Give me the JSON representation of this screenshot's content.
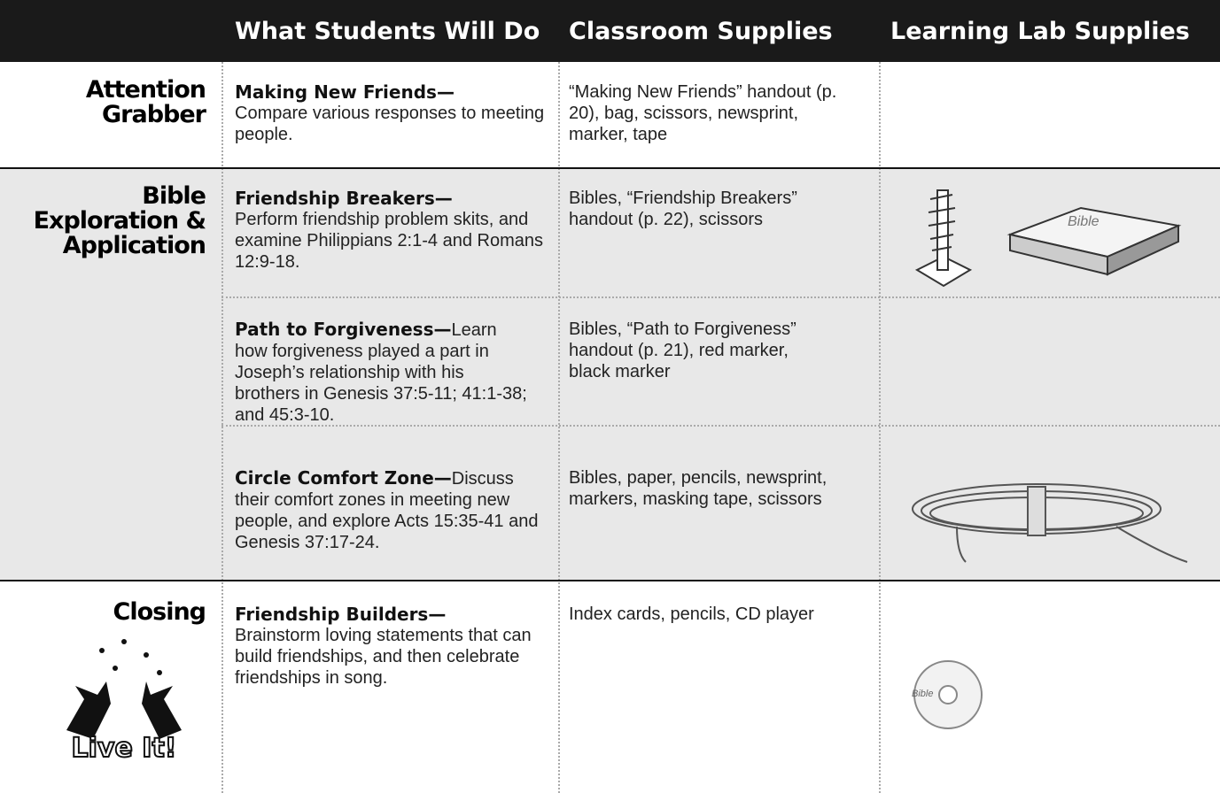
{
  "header": {
    "columns": [
      "What Students Will Do",
      "Classroom Supplies",
      "Learning Lab Supplies"
    ]
  },
  "sections": [
    {
      "label": "Attention Grabber",
      "activities": [
        {
          "title": "Making New Friends—",
          "description": "Compare various responses to meeting people.",
          "supplies": "“Making New Friends” handout (p. 20), bag, scissors, newsprint, marker, tape"
        }
      ]
    },
    {
      "label": "Bible Exploration & Application",
      "activities": [
        {
          "title": "Friendship Breakers—",
          "description": "Perform friendship problem skits, and examine Philippians 2:1-4 and Romans 12:9-18.",
          "supplies": "Bibles, “Friendship Breakers” handout (p. 22), scissors"
        },
        {
          "title": "Path to Forgiveness—",
          "description": "Learn how forgiveness played a part in Joseph’s relationship with his brothers in Genesis 37:5-11; 41:1-38; and 45:3-10.",
          "supplies": "Bibles, “Path to Forgiveness” handout (p. 21), red marker, black marker"
        },
        {
          "title": "Circle Comfort Zone—",
          "description": "Discuss their comfort zones in meeting new people, and explore Acts 15:35-41 and Genesis 37:17-24.",
          "supplies": "Bibles, paper, pencils, newsprint, markers, masking tape, scissors"
        }
      ]
    },
    {
      "label": "Closing",
      "activities": [
        {
          "title": "Friendship Builders—",
          "description": "Brainstorm loving statements that can build friendships, and then celebrate friendships in song.",
          "supplies": "Index cards, pencils, CD player"
        }
      ]
    }
  ],
  "images": {
    "bible_label": "Bible",
    "live_it": "Live It!"
  }
}
